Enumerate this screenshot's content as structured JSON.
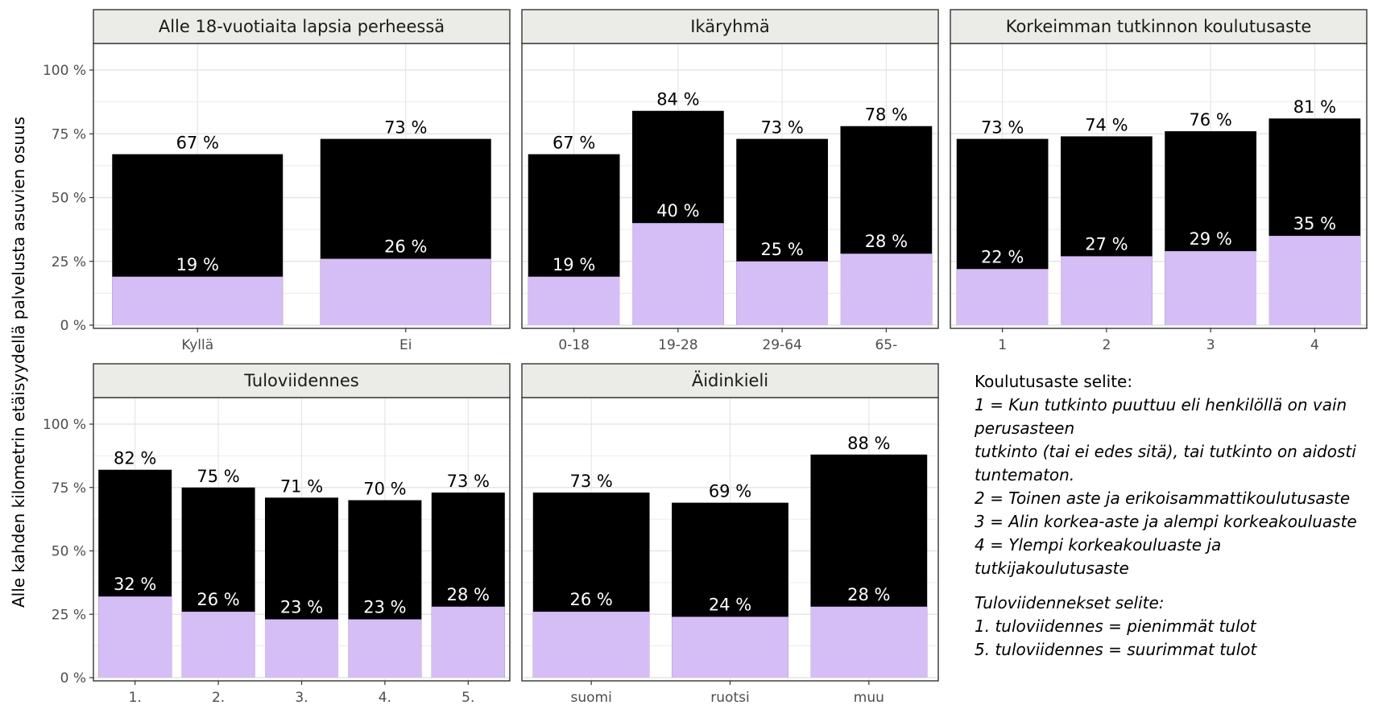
{
  "colors": {
    "total": "#000000",
    "lower": "#d5bdf5",
    "strip_fill": "#ebebe7",
    "grid": "#e6e6e6",
    "panel_border": "#333333"
  },
  "ylabel": "Alle kahden kilometrin etäisyydellä palvelusta asuvien osuus",
  "chart_data": [
    {
      "type": "bar",
      "title": "Alle 18-vuotiaita lapsia perheessä",
      "categories": [
        "Kyllä",
        "Ei"
      ],
      "series": [
        {
          "values": [
            67,
            73
          ],
          "labels": [
            "67 %",
            "73 %"
          ]
        },
        {
          "values": [
            19,
            26
          ],
          "labels": [
            "19 %",
            "26 %"
          ]
        }
      ],
      "yticks": [
        "0 %",
        "25 %",
        "50 %",
        "75 %",
        "100 %"
      ],
      "ylim": [
        0,
        100
      ]
    },
    {
      "type": "bar",
      "title": "Ikäryhmä",
      "categories": [
        "0-18",
        "19-28",
        "29-64",
        "65-"
      ],
      "series": [
        {
          "values": [
            67,
            84,
            73,
            78
          ],
          "labels": [
            "67 %",
            "84 %",
            "73 %",
            "78 %"
          ]
        },
        {
          "values": [
            19,
            40,
            25,
            28
          ],
          "labels": [
            "19 %",
            "40 %",
            "25 %",
            "28 %"
          ]
        }
      ],
      "ylim": [
        0,
        100
      ]
    },
    {
      "type": "bar",
      "title": "Korkeimman tutkinnon koulutusaste",
      "categories": [
        "1",
        "2",
        "3",
        "4"
      ],
      "series": [
        {
          "values": [
            73,
            74,
            76,
            81
          ],
          "labels": [
            "73 %",
            "74 %",
            "76 %",
            "81 %"
          ]
        },
        {
          "values": [
            22,
            27,
            29,
            35
          ],
          "labels": [
            "22 %",
            "27 %",
            "29 %",
            "35 %"
          ]
        }
      ],
      "ylim": [
        0,
        100
      ]
    },
    {
      "type": "bar",
      "title": "Tuloviidennes",
      "categories": [
        "1.",
        "2.",
        "3.",
        "4.",
        "5."
      ],
      "series": [
        {
          "values": [
            82,
            75,
            71,
            70,
            73
          ],
          "labels": [
            "82 %",
            "75 %",
            "71 %",
            "70 %",
            "73 %"
          ]
        },
        {
          "values": [
            32,
            26,
            23,
            23,
            28
          ],
          "labels": [
            "32 %",
            "26 %",
            "23 %",
            "23 %",
            "28 %"
          ]
        }
      ],
      "yticks": [
        "0 %",
        "25 %",
        "50 %",
        "75 %",
        "100 %"
      ],
      "ylim": [
        0,
        100
      ]
    },
    {
      "type": "bar",
      "title": "Äidinkieli",
      "categories": [
        "suomi",
        "ruotsi",
        "muu"
      ],
      "series": [
        {
          "values": [
            73,
            69,
            88
          ],
          "labels": [
            "73 %",
            "69 %",
            "88 %"
          ]
        },
        {
          "values": [
            26,
            24,
            28
          ],
          "labels": [
            "26 %",
            "24 %",
            "28 %"
          ]
        }
      ],
      "ylim": [
        0,
        100
      ]
    }
  ],
  "legend": {
    "education_title": "Koulutusaste selite:",
    "education_lines": [
      "1 = Kun tutkinto puuttuu eli henkilöllä on vain",
      "perusasteen",
      "tutkinto (tai ei edes sitä), tai tutkinto on aidosti",
      "tuntematon.",
      "2 = Toinen aste ja erikoisammattikoulutusaste",
      "3 = Alin korkea-aste ja alempi korkeakouluaste",
      "4 = Ylempi korkeakouluaste ja",
      "tutkijakoulutusaste"
    ],
    "income_lines": [
      "Tuloviidennekset selite:",
      "1. tuloviidennes = pienimmät tulot",
      "5. tuloviidennes = suurimmat tulot"
    ]
  }
}
